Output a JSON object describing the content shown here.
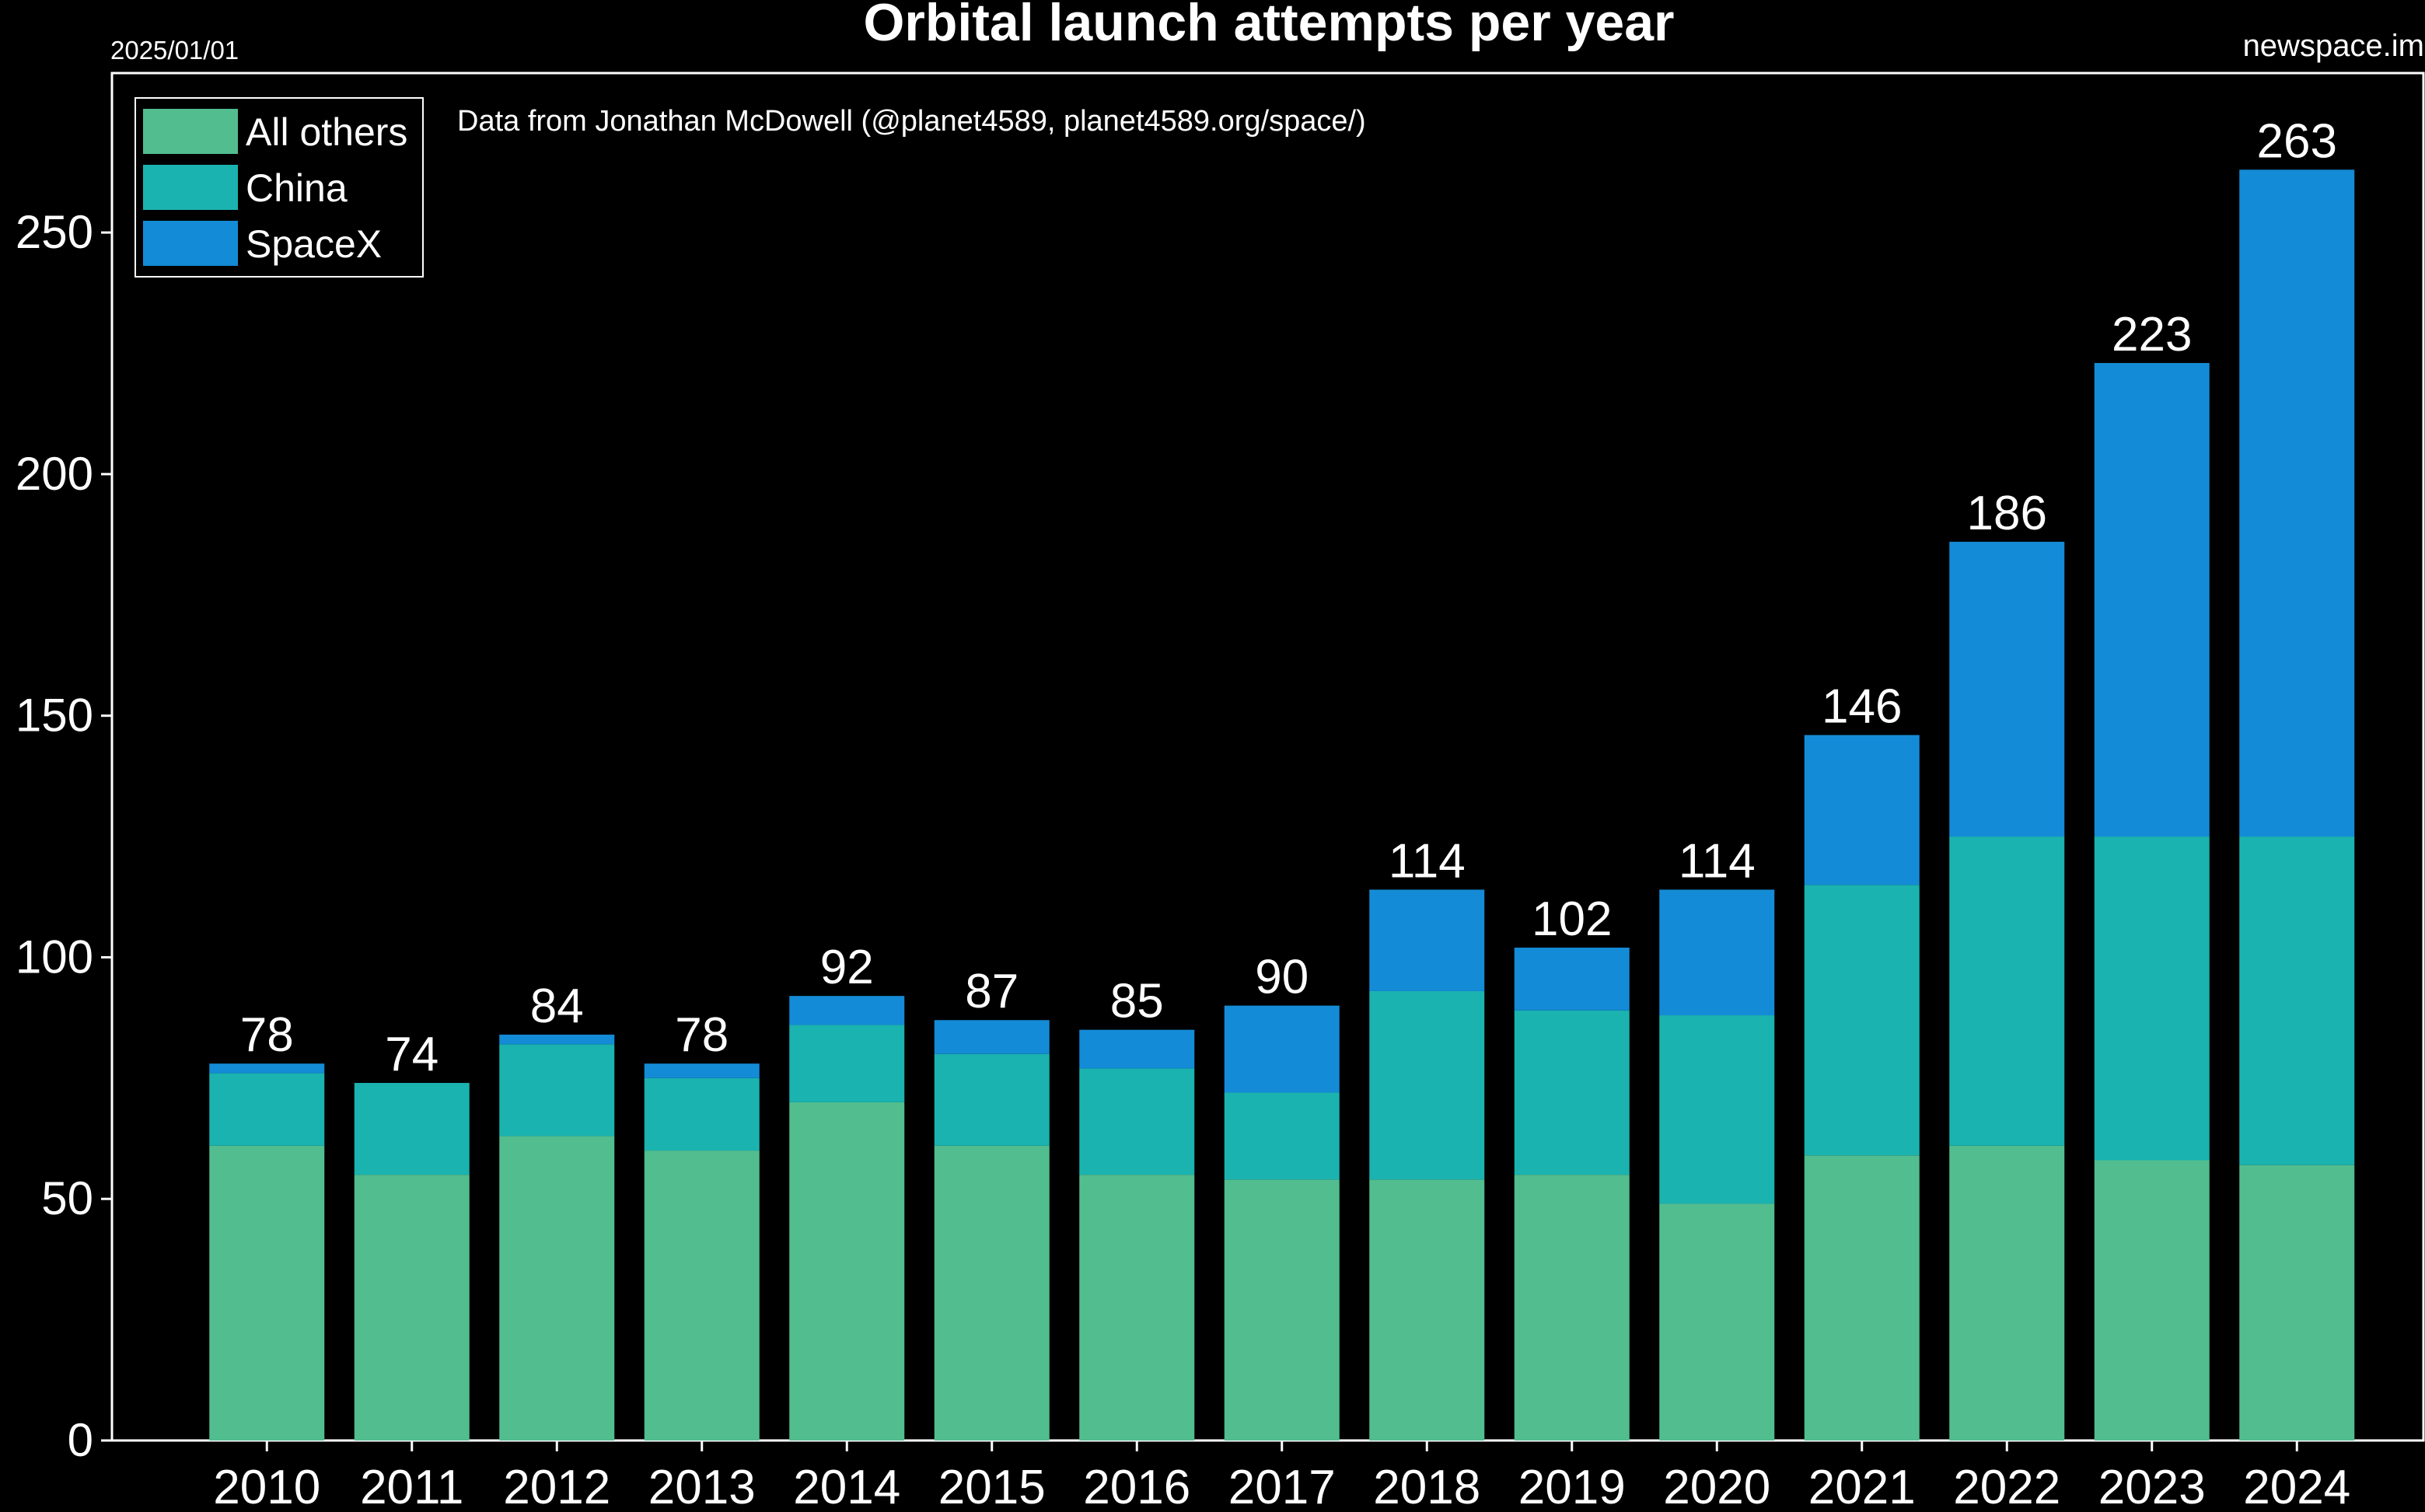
{
  "header": {
    "title": "Orbital launch attempts per year",
    "date": "2025/01/01",
    "site": "newspace.im",
    "source": "Data from Jonathan McDowell (@planet4589, planet4589.org/space/)"
  },
  "colors": {
    "background": "#000000",
    "frame": "#ffffff",
    "text": "#ffffff"
  },
  "chart_data": {
    "type": "bar",
    "stacked": true,
    "title": "Orbital launch attempts per year",
    "xlabel": "",
    "ylabel": "",
    "ylim": [
      0,
      283
    ],
    "yticks": [
      0,
      50,
      100,
      150,
      200,
      250
    ],
    "grid": false,
    "legend_position": "top-left",
    "categories": [
      "2010",
      "2011",
      "2012",
      "2013",
      "2014",
      "2015",
      "2016",
      "2017",
      "2018",
      "2019",
      "2020",
      "2021",
      "2022",
      "2023",
      "2024"
    ],
    "series": [
      {
        "name": "All others",
        "color": "#52bd8f",
        "values": [
          61,
          55,
          63,
          60,
          70,
          61,
          55,
          54,
          54,
          55,
          49,
          59,
          61,
          58,
          57
        ]
      },
      {
        "name": "China",
        "color": "#1ab3b0",
        "values": [
          15,
          19,
          19,
          15,
          16,
          19,
          22,
          18,
          39,
          34,
          39,
          56,
          64,
          67,
          68
        ]
      },
      {
        "name": "SpaceX",
        "color": "#148bd6",
        "values": [
          2,
          0,
          2,
          3,
          6,
          7,
          8,
          18,
          21,
          13,
          26,
          31,
          61,
          98,
          138
        ]
      }
    ],
    "totals": [
      78,
      74,
      84,
      78,
      92,
      87,
      85,
      90,
      114,
      102,
      114,
      146,
      186,
      223,
      263
    ]
  }
}
